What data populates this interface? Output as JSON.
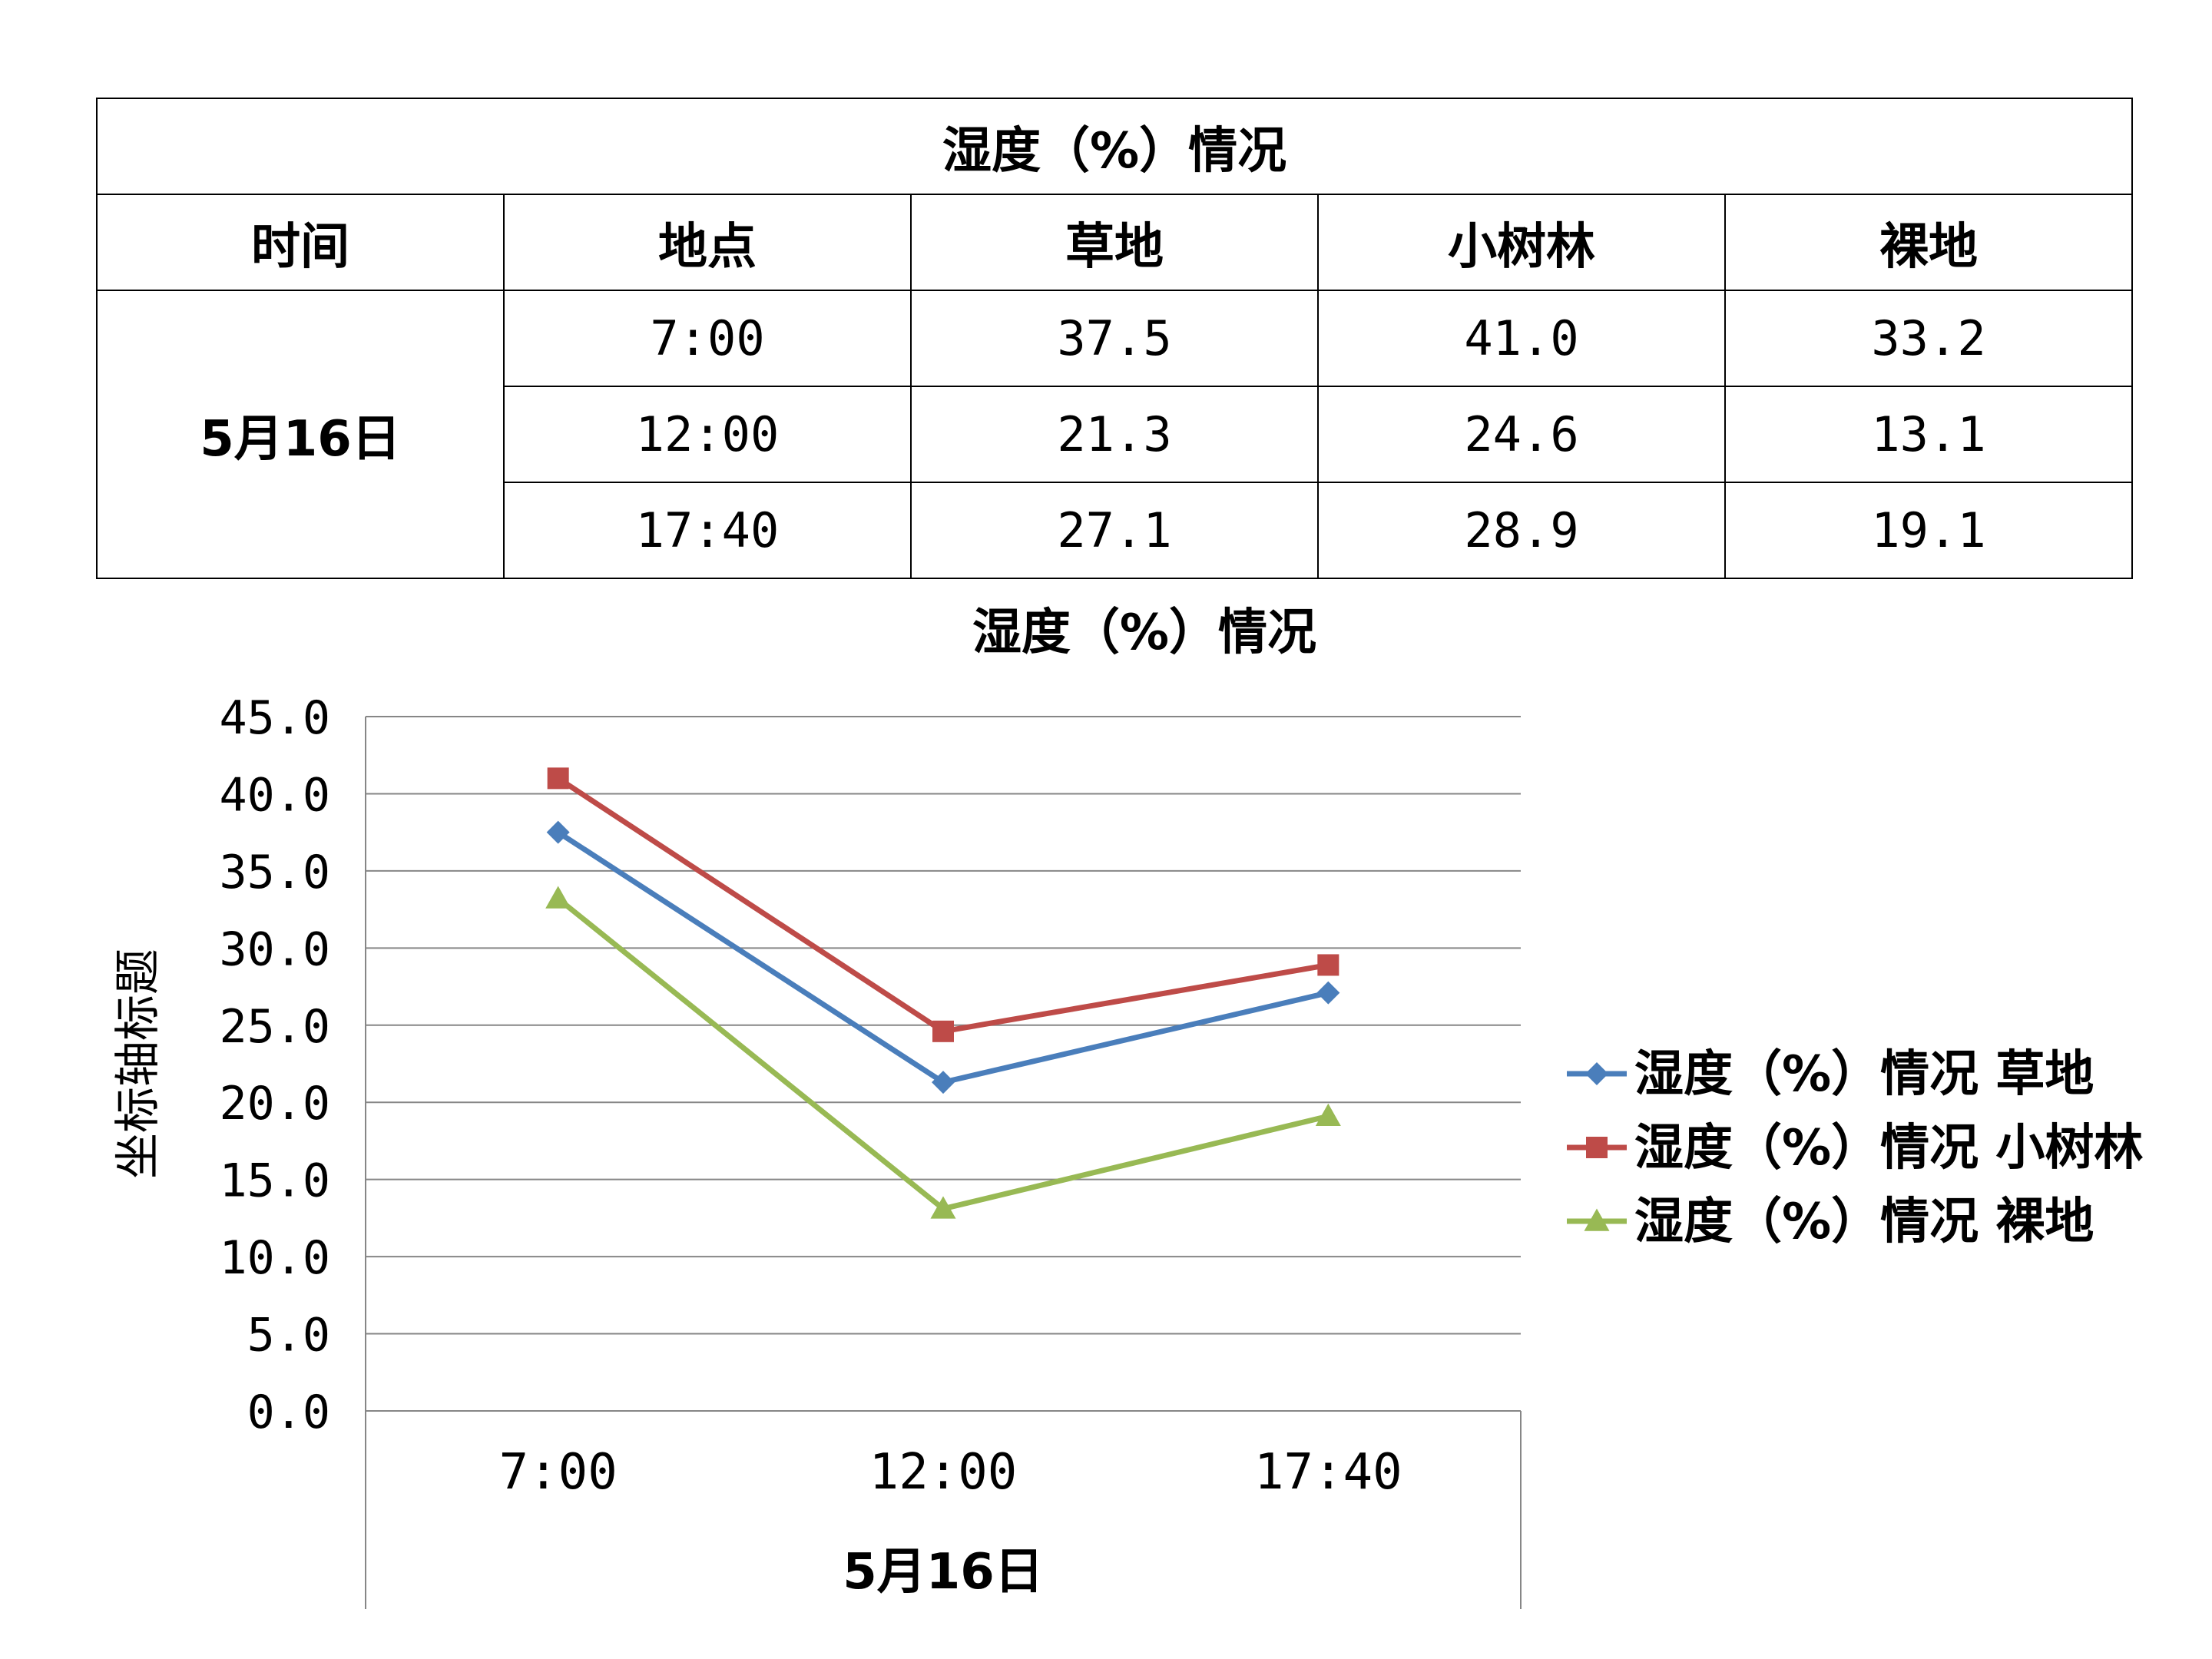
{
  "table": {
    "title": "湿度（%）情况",
    "headers": [
      "时间",
      "地点",
      "草地",
      "小树林",
      "裸地"
    ],
    "date": "5月16日",
    "rows": [
      [
        "7:00",
        "37.5",
        "41.0",
        "33.2"
      ],
      [
        "12:00",
        "21.3",
        "24.6",
        "13.1"
      ],
      [
        "17:40",
        "27.1",
        "28.9",
        "19.1"
      ]
    ]
  },
  "chart_data": {
    "type": "line",
    "title": "湿度（%）情况",
    "categories": [
      "7:00",
      "12:00",
      "17:40"
    ],
    "category_group": "5月16日",
    "ylabel": "坐标轴标题",
    "ylim": [
      0,
      45
    ],
    "yticks": [
      "0.0",
      "5.0",
      "10.0",
      "15.0",
      "20.0",
      "25.0",
      "30.0",
      "35.0",
      "40.0",
      "45.0"
    ],
    "grid": true,
    "legend_position": "right",
    "series": [
      {
        "name": "湿度（%）情况 草地",
        "values": [
          37.5,
          21.3,
          27.1
        ],
        "color": "#4a7ebb",
        "marker": "diamond"
      },
      {
        "name": "湿度（%）情况 小树林",
        "values": [
          41.0,
          24.6,
          28.9
        ],
        "color": "#be4b48",
        "marker": "square"
      },
      {
        "name": "湿度（%）情况 裸地",
        "values": [
          33.2,
          13.1,
          19.1
        ],
        "color": "#98b954",
        "marker": "triangle"
      }
    ]
  }
}
